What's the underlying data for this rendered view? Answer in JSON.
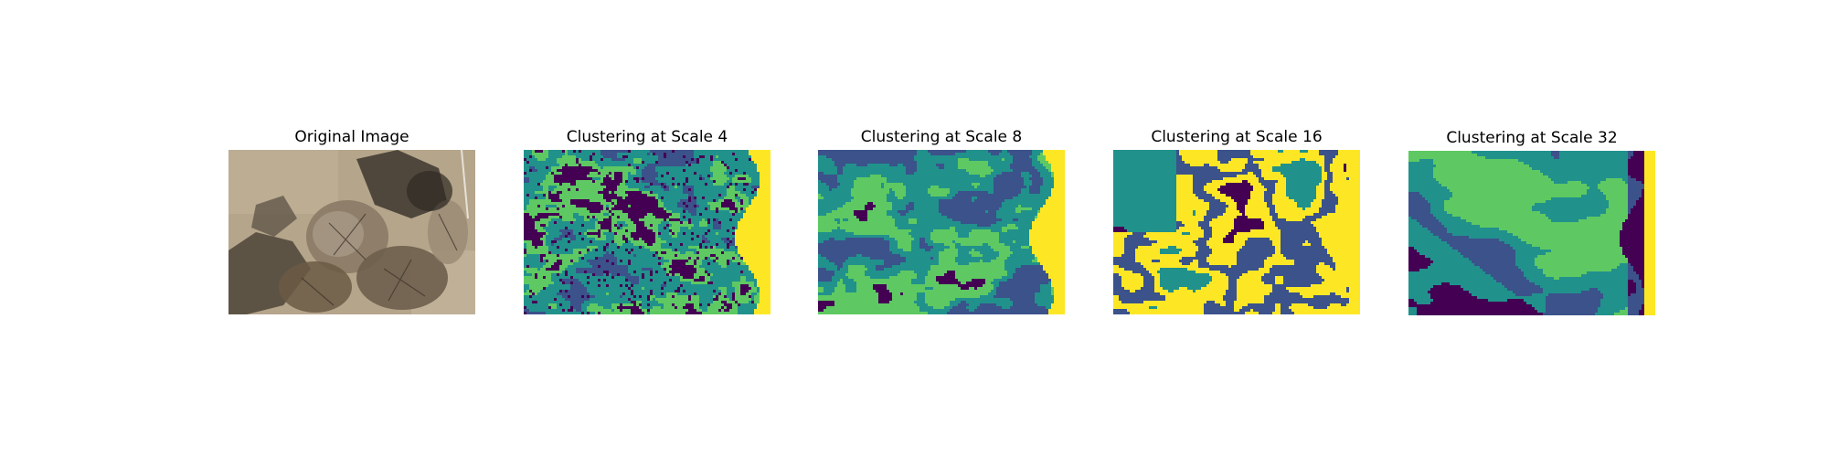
{
  "figure": {
    "panels": [
      {
        "title": "Original Image",
        "kind": "photo"
      },
      {
        "title": "Clustering at Scale 4",
        "kind": "clusters",
        "scale": 4
      },
      {
        "title": "Clustering at Scale 8",
        "kind": "clusters",
        "scale": 8
      },
      {
        "title": "Clustering at Scale 16",
        "kind": "clusters",
        "scale": 16
      },
      {
        "title": "Clustering at Scale 32",
        "kind": "clusters",
        "scale": 32
      }
    ],
    "cluster_colors": [
      "#440154",
      "#3b528b",
      "#21918c",
      "#5ec962",
      "#fde725"
    ],
    "photo_colors": {
      "ground": "#b5a58b",
      "shadow": "#4d4438",
      "shrub": "#8a7a66",
      "dark": "#2f2a24"
    }
  }
}
